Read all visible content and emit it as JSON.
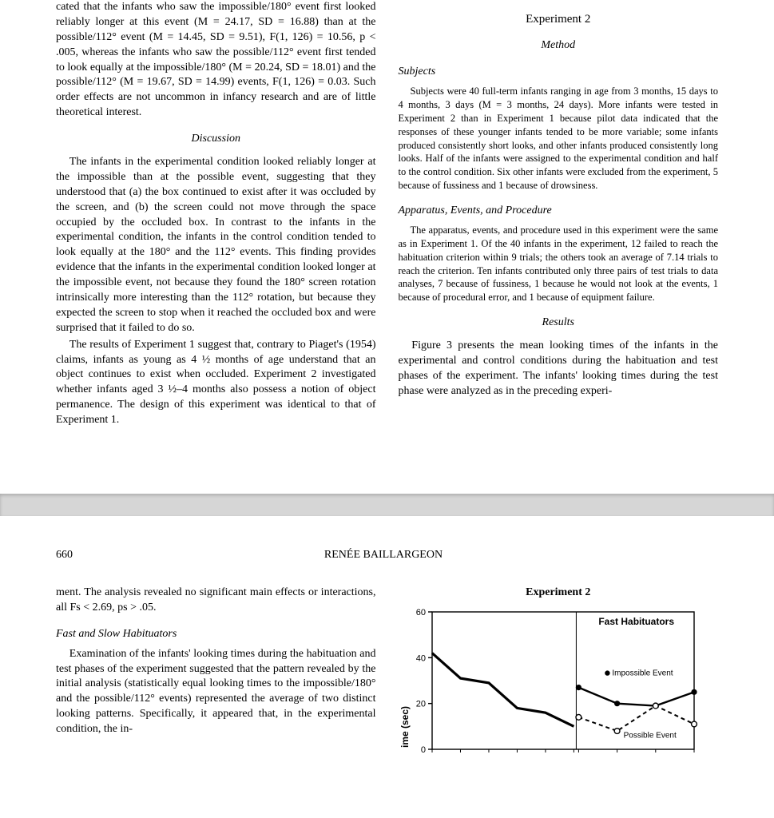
{
  "page1": {
    "left": {
      "para1": "cated that the infants who saw the impossible/180° event first looked reliably longer at this event (M = 24.17, SD = 16.88) than at the possible/112° event (M = 14.45, SD = 9.51), F(1, 126) = 10.56, p < .005, whereas the infants who saw the possible/112° event first tended to look equally at the impossible/180° (M = 20.24, SD = 18.01) and the possible/112° (M = 19.67, SD = 14.99) events, F(1, 126) = 0.03. Such order effects are not uncommon in infancy research and are of little theoretical interest.",
      "discussion_heading": "Discussion",
      "disc_para1": "The infants in the experimental condition looked reliably longer at the impossible than at the possible event, suggesting that they understood that (a) the box continued to exist after it was occluded by the screen, and (b) the screen could not move through the space occupied by the occluded box. In contrast to the infants in the experimental condition, the infants in the control condition tended to look equally at the 180° and the 112° events. This finding provides evidence that the infants in the experimental condition looked longer at the impossible event, not because they found the 180° screen rotation intrinsically more interesting than the 112° rotation, but because they expected the screen to stop when it reached the occluded box and were surprised that it failed to do so.",
      "disc_para2": "The results of Experiment 1 suggest that, contrary to Piaget's (1954) claims, infants as young as 4 ½ months of age understand that an object continues to exist when occluded. Experiment 2 investigated whether infants aged 3 ½–4 months also possess a notion of object permanence. The design of this experiment was identical to that of Experiment 1."
    },
    "right": {
      "exp2_heading": "Experiment 2",
      "method_heading": "Method",
      "subjects_heading": "Subjects",
      "subjects_para": "Subjects were 40 full-term infants ranging in age from 3 months, 15 days to 4 months, 3 days (M = 3 months, 24 days). More infants were tested in Experiment 2 than in Experiment 1 because pilot data indicated that the responses of these younger infants tended to be more variable; some infants produced consistently short looks, and other infants produced consistently long looks. Half of the infants were assigned to the experimental condition and half to the control condition. Six other infants were excluded from the experiment, 5 because of fussiness and 1 because of drowsiness.",
      "apparatus_heading": "Apparatus, Events, and Procedure",
      "apparatus_para": "The apparatus, events, and procedure used in this experiment were the same as in Experiment 1. Of the 40 infants in the experiment, 12 failed to reach the habituation criterion within 9 trials; the others took an average of 7.14 trials to reach the criterion. Ten infants contributed only three pairs of test trials to data analyses, 7 because of fussiness, 1 because he would not look at the events, 1 because of procedural error, and 1 because of equipment failure.",
      "results_heading": "Results",
      "results_para": "Figure 3 presents the mean looking times of the infants in the experimental and control conditions during the habituation and test phases of the experiment. The infants' looking times during the test phase were analyzed as in the preceding experi-"
    }
  },
  "page2": {
    "page_number": "660",
    "author": "RENÉE BAILLARGEON",
    "left": {
      "para1": "ment. The analysis revealed no significant main effects or interactions, all Fs < 2.69, ps > .05.",
      "sub_heading": "Fast and Slow Habituators",
      "para2": "Examination of the infants' looking times during the habituation and test phases of the experiment suggested that the pattern revealed by the initial analysis (statistically equal looking times to the impossible/180° and the possible/112° events) represented the average of two distinct looking patterns. Specifically, it appeared that, in the experimental condition, the in-"
    },
    "chart": {
      "title": "Experiment 2",
      "subtitle": "Fast Habituators",
      "legend_impossible": "Impossible Event",
      "legend_possible": "Possible Event",
      "y_axis_label": "ime (sec)",
      "y_ticks": [
        0,
        20,
        40,
        60
      ],
      "habituation": {
        "x": [
          -6,
          -5,
          -4,
          -3,
          -2,
          -1
        ],
        "y": [
          42,
          31,
          29,
          18,
          16,
          10
        ],
        "color": "#000000",
        "line_width": 3.2
      },
      "impossible": {
        "x": [
          1,
          2,
          3,
          4
        ],
        "y": [
          27,
          20,
          19,
          25
        ],
        "color": "#000000",
        "marker": "circle-filled",
        "line_width": 2.4
      },
      "possible": {
        "x": [
          1,
          2,
          3,
          4
        ],
        "y": [
          14,
          8,
          19,
          11
        ],
        "color": "#000000",
        "marker": "circle-open",
        "dash": "5,4",
        "line_width": 2.0
      },
      "ylim": [
        0,
        60
      ],
      "xlim_left": [
        -6,
        -1
      ],
      "xlim_right": [
        1,
        4
      ],
      "background": "#ffffff",
      "axis_color": "#000000",
      "font_size_labels": 11,
      "font_size_title": 14
    }
  }
}
